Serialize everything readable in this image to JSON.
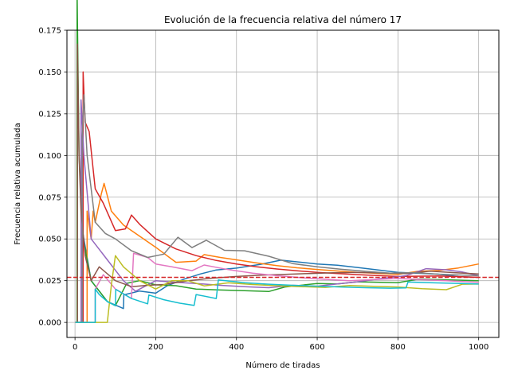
{
  "chart_data": {
    "type": "line",
    "title": "Evolución de la frecuencia relativa del número 17",
    "xlabel": "Número de tiradas",
    "ylabel": "Frecuencia relativa acumulada",
    "xlim": [
      -20,
      1050
    ],
    "ylim": [
      -0.009,
      0.175
    ],
    "xticks": [
      0,
      200,
      400,
      600,
      800,
      1000
    ],
    "xtick_labels": [
      "0",
      "200",
      "400",
      "600",
      "800",
      "1000"
    ],
    "yticks": [
      0.0,
      0.025,
      0.05,
      0.075,
      0.1,
      0.125,
      0.15,
      0.175
    ],
    "ytick_labels": [
      "0.000",
      "0.025",
      "0.050",
      "0.075",
      "0.100",
      "0.125",
      "0.150",
      "0.175"
    ],
    "grid": true,
    "legend": "none",
    "reference_line": {
      "y": 0.027,
      "style": "dashed",
      "color": "#d62728"
    },
    "series": [
      {
        "color": "#1f77b4",
        "points": [
          [
            1,
            0
          ],
          [
            18,
            0
          ],
          [
            18,
            0.0556
          ],
          [
            40,
            0.025
          ],
          [
            80,
            0.0125
          ],
          [
            120,
            0.0083
          ],
          [
            121,
            0.0165
          ],
          [
            160,
            0.0188
          ],
          [
            200,
            0.0175
          ],
          [
            228,
            0.0219
          ],
          [
            270,
            0.0259
          ],
          [
            310,
            0.029
          ],
          [
            350,
            0.0314
          ],
          [
            400,
            0.0325
          ],
          [
            460,
            0.0348
          ],
          [
            510,
            0.0373
          ],
          [
            600,
            0.035
          ],
          [
            650,
            0.0343
          ],
          [
            700,
            0.0329
          ],
          [
            800,
            0.03
          ],
          [
            850,
            0.0294
          ],
          [
            900,
            0.0289
          ],
          [
            950,
            0.0274
          ],
          [
            1000,
            0.027
          ]
        ]
      },
      {
        "color": "#ff7f0e",
        "points": [
          [
            1,
            0
          ],
          [
            30,
            0
          ],
          [
            30,
            0.0667
          ],
          [
            40,
            0.05
          ],
          [
            45,
            0.0667
          ],
          [
            50,
            0.06
          ],
          [
            65,
            0.0769
          ],
          [
            72,
            0.0833
          ],
          [
            90,
            0.0667
          ],
          [
            120,
            0.0583
          ],
          [
            150,
            0.0533
          ],
          [
            200,
            0.045
          ],
          [
            250,
            0.036
          ],
          [
            300,
            0.0367
          ],
          [
            320,
            0.0406
          ],
          [
            360,
            0.0389
          ],
          [
            400,
            0.0375
          ],
          [
            450,
            0.0356
          ],
          [
            500,
            0.034
          ],
          [
            550,
            0.0327
          ],
          [
            600,
            0.0317
          ],
          [
            650,
            0.0308
          ],
          [
            700,
            0.03
          ],
          [
            800,
            0.0288
          ],
          [
            850,
            0.0306
          ],
          [
            900,
            0.0311
          ],
          [
            950,
            0.0326
          ],
          [
            1000,
            0.035
          ]
        ]
      },
      {
        "color": "#2ca02c",
        "points": [
          [
            1,
            0
          ],
          [
            5,
            0
          ],
          [
            5,
            0.2
          ],
          [
            10,
            0.1
          ],
          [
            20,
            0.05
          ],
          [
            40,
            0.025
          ],
          [
            80,
            0.0125
          ],
          [
            100,
            0.01
          ],
          [
            128,
            0.0234
          ],
          [
            160,
            0.025
          ],
          [
            200,
            0.0225
          ],
          [
            250,
            0.022
          ],
          [
            300,
            0.02
          ],
          [
            360,
            0.0194
          ],
          [
            420,
            0.019
          ],
          [
            480,
            0.0185
          ],
          [
            520,
            0.0212
          ],
          [
            600,
            0.0233
          ],
          [
            650,
            0.0231
          ],
          [
            700,
            0.0243
          ],
          [
            800,
            0.0238
          ],
          [
            850,
            0.0259
          ],
          [
            900,
            0.0256
          ],
          [
            950,
            0.0253
          ],
          [
            1000,
            0.025
          ]
        ]
      },
      {
        "color": "#d62728",
        "points": [
          [
            1,
            0
          ],
          [
            20,
            0
          ],
          [
            20,
            0.15
          ],
          [
            25,
            0.12
          ],
          [
            35,
            0.1143
          ],
          [
            50,
            0.08
          ],
          [
            70,
            0.0714
          ],
          [
            100,
            0.055
          ],
          [
            125,
            0.056
          ],
          [
            140,
            0.0643
          ],
          [
            160,
            0.0588
          ],
          [
            200,
            0.05
          ],
          [
            250,
            0.044
          ],
          [
            300,
            0.04
          ],
          [
            350,
            0.0371
          ],
          [
            400,
            0.035
          ],
          [
            450,
            0.0333
          ],
          [
            500,
            0.032
          ],
          [
            550,
            0.0309
          ],
          [
            600,
            0.03
          ],
          [
            700,
            0.0286
          ],
          [
            800,
            0.0275
          ],
          [
            900,
            0.0278
          ],
          [
            1000,
            0.027
          ]
        ]
      },
      {
        "color": "#9467bd",
        "points": [
          [
            1,
            0
          ],
          [
            15,
            0
          ],
          [
            15,
            0.1333
          ],
          [
            22,
            0.1
          ],
          [
            40,
            0.05
          ],
          [
            80,
            0.0375
          ],
          [
            120,
            0.025
          ],
          [
            150,
            0.0187
          ],
          [
            200,
            0.025
          ],
          [
            250,
            0.024
          ],
          [
            300,
            0.0233
          ],
          [
            360,
            0.0222
          ],
          [
            420,
            0.0214
          ],
          [
            480,
            0.0208
          ],
          [
            540,
            0.0222
          ],
          [
            600,
            0.0217
          ],
          [
            650,
            0.0231
          ],
          [
            700,
            0.0243
          ],
          [
            760,
            0.0263
          ],
          [
            820,
            0.028
          ],
          [
            870,
            0.0322
          ],
          [
            920,
            0.0315
          ],
          [
            960,
            0.0302
          ],
          [
            1000,
            0.028
          ]
        ]
      },
      {
        "color": "#8c564b",
        "points": [
          [
            1,
            0
          ],
          [
            6,
            0
          ],
          [
            6,
            0.1667
          ],
          [
            10,
            0.1
          ],
          [
            15,
            0.0667
          ],
          [
            25,
            0.04
          ],
          [
            40,
            0.025
          ],
          [
            60,
            0.0333
          ],
          [
            100,
            0.025
          ],
          [
            140,
            0.0214
          ],
          [
            180,
            0.0222
          ],
          [
            220,
            0.0227
          ],
          [
            280,
            0.025
          ],
          [
            340,
            0.0265
          ],
          [
            400,
            0.0275
          ],
          [
            460,
            0.0283
          ],
          [
            520,
            0.0288
          ],
          [
            580,
            0.0293
          ],
          [
            640,
            0.0297
          ],
          [
            700,
            0.03
          ],
          [
            760,
            0.0296
          ],
          [
            820,
            0.0293
          ],
          [
            880,
            0.0307
          ],
          [
            940,
            0.0298
          ],
          [
            1000,
            0.029
          ]
        ]
      },
      {
        "color": "#e377c2",
        "points": [
          [
            1,
            0
          ],
          [
            50,
            0
          ],
          [
            50,
            0.02
          ],
          [
            70,
            0.0286
          ],
          [
            100,
            0.02
          ],
          [
            140,
            0.0143
          ],
          [
            145,
            0.0414
          ],
          [
            180,
            0.0389
          ],
          [
            200,
            0.035
          ],
          [
            240,
            0.0333
          ],
          [
            290,
            0.031
          ],
          [
            320,
            0.0344
          ],
          [
            380,
            0.0316
          ],
          [
            440,
            0.0295
          ],
          [
            500,
            0.028
          ],
          [
            560,
            0.0268
          ],
          [
            620,
            0.0258
          ],
          [
            680,
            0.025
          ],
          [
            740,
            0.0257
          ],
          [
            800,
            0.0263
          ],
          [
            860,
            0.0256
          ],
          [
            920,
            0.025
          ],
          [
            1000,
            0.024
          ]
        ]
      },
      {
        "color": "#7f7f7f",
        "points": [
          [
            1,
            0
          ],
          [
            18,
            0
          ],
          [
            18,
            0.1111
          ],
          [
            22,
            0.1364
          ],
          [
            30,
            0.1
          ],
          [
            50,
            0.06
          ],
          [
            75,
            0.0533
          ],
          [
            100,
            0.05
          ],
          [
            140,
            0.0429
          ],
          [
            180,
            0.0389
          ],
          [
            220,
            0.0409
          ],
          [
            255,
            0.051
          ],
          [
            290,
            0.0448
          ],
          [
            325,
            0.0492
          ],
          [
            370,
            0.0432
          ],
          [
            420,
            0.0429
          ],
          [
            480,
            0.0396
          ],
          [
            540,
            0.0352
          ],
          [
            600,
            0.0333
          ],
          [
            660,
            0.0318
          ],
          [
            720,
            0.0306
          ],
          [
            780,
            0.0295
          ],
          [
            840,
            0.0298
          ],
          [
            900,
            0.0289
          ],
          [
            950,
            0.0284
          ],
          [
            1000,
            0.028
          ]
        ]
      },
      {
        "color": "#bcbd22",
        "points": [
          [
            1,
            0
          ],
          [
            60,
            0
          ],
          [
            80,
            0
          ],
          [
            90,
            0.0222
          ],
          [
            100,
            0.04
          ],
          [
            120,
            0.0333
          ],
          [
            160,
            0.025
          ],
          [
            200,
            0.02
          ],
          [
            240,
            0.025
          ],
          [
            280,
            0.025
          ],
          [
            320,
            0.0219
          ],
          [
            380,
            0.0237
          ],
          [
            440,
            0.0227
          ],
          [
            500,
            0.022
          ],
          [
            560,
            0.0214
          ],
          [
            620,
            0.021
          ],
          [
            680,
            0.0221
          ],
          [
            740,
            0.0216
          ],
          [
            800,
            0.0212
          ],
          [
            860,
            0.0202
          ],
          [
            920,
            0.0196
          ],
          [
            960,
            0.0229
          ],
          [
            1000,
            0.023
          ]
        ]
      },
      {
        "color": "#17becf",
        "points": [
          [
            1,
            0
          ],
          [
            50,
            0
          ],
          [
            50,
            0.02
          ],
          [
            60,
            0.0167
          ],
          [
            80,
            0.0125
          ],
          [
            100,
            0.01
          ],
          [
            101,
            0.0198
          ],
          [
            140,
            0.0143
          ],
          [
            180,
            0.0111
          ],
          [
            183,
            0.0164
          ],
          [
            220,
            0.0136
          ],
          [
            260,
            0.0115
          ],
          [
            295,
            0.0102
          ],
          [
            300,
            0.0167
          ],
          [
            350,
            0.0143
          ],
          [
            355,
            0.0254
          ],
          [
            420,
            0.0238
          ],
          [
            480,
            0.0229
          ],
          [
            540,
            0.0222
          ],
          [
            600,
            0.0217
          ],
          [
            660,
            0.0212
          ],
          [
            720,
            0.0208
          ],
          [
            780,
            0.0205
          ],
          [
            820,
            0.0207
          ],
          [
            825,
            0.0242
          ],
          [
            880,
            0.0238
          ],
          [
            940,
            0.0234
          ],
          [
            1000,
            0.023
          ]
        ]
      }
    ]
  }
}
